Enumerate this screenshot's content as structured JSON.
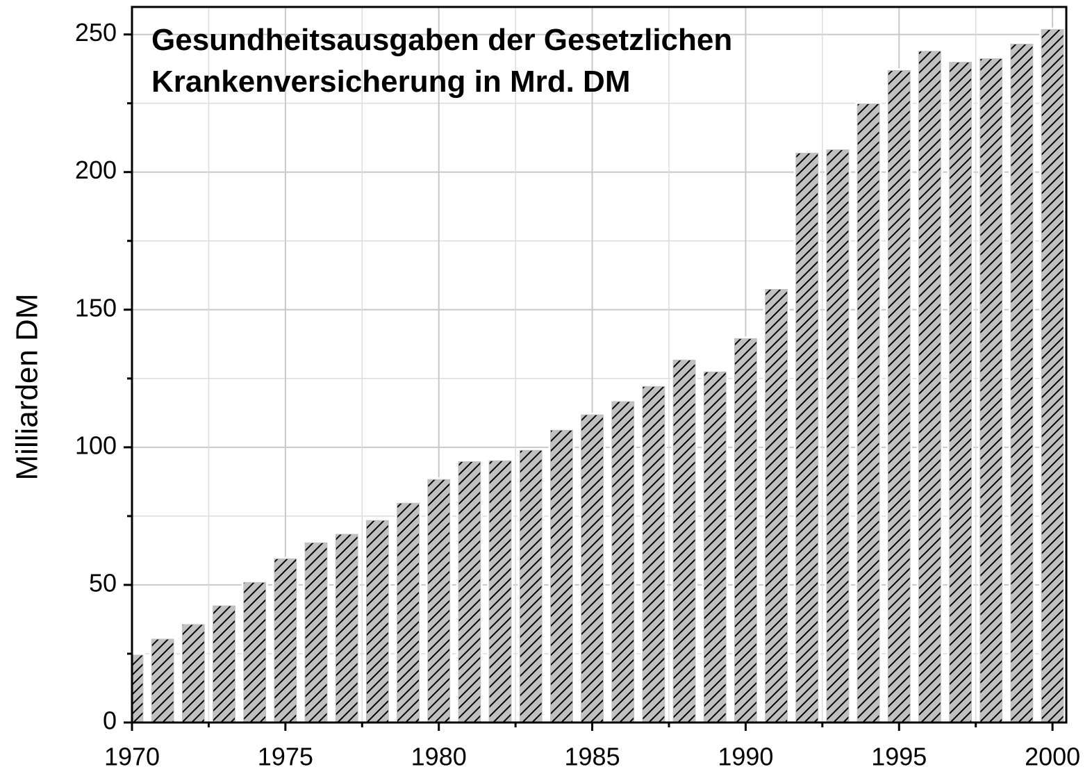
{
  "chart_data": {
    "type": "bar",
    "title": [
      "Gesundheitsausgaben der Gesetzlichen",
      "Krankenversicherung in Mrd. DM"
    ],
    "y_label": "Milliarden DM",
    "x": [
      1970,
      1971,
      1972,
      1973,
      1974,
      1975,
      1976,
      1977,
      1978,
      1979,
      1980,
      1981,
      1982,
      1983,
      1984,
      1985,
      1986,
      1987,
      1988,
      1989,
      1990,
      1991,
      1992,
      1993,
      1994,
      1995,
      1996,
      1997,
      1998,
      1999,
      2000
    ],
    "values": [
      24.5,
      30.3,
      35.6,
      42.4,
      50.9,
      59.5,
      65.3,
      68.4,
      73.4,
      79.7,
      88.3,
      94.8,
      95.1,
      98.9,
      106.2,
      111.8,
      116.6,
      122.1,
      131.7,
      127.4,
      139.5,
      157.4,
      206.9,
      208.1,
      224.8,
      236.9,
      243.9,
      239.9,
      241.2,
      246.5,
      251.8
    ],
    "color": "#c0c0c0",
    "xlim": [
      1970,
      2000.45
    ],
    "xticks": [
      1970,
      1975,
      1980,
      1985,
      1990,
      1995,
      2000
    ],
    "ylim": [
      0,
      260
    ],
    "yticks": [
      0,
      50,
      100,
      150,
      200,
      250
    ],
    "grid": true
  }
}
